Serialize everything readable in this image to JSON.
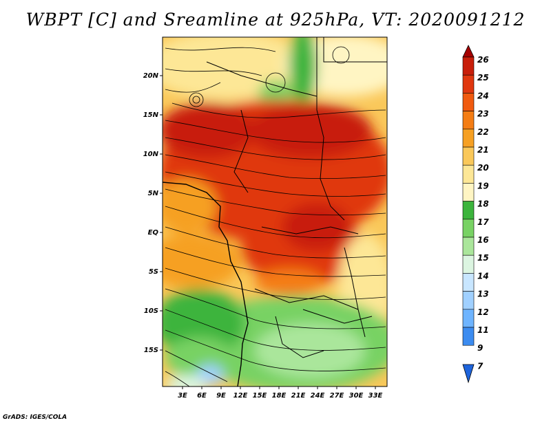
{
  "title": "WBPT [C] and Sreamline at 925hPa, VT: 2020091212",
  "credit": "GrADS: IGES/COLA",
  "lat_labels": [
    "20N",
    "15N",
    "10N",
    "5N",
    "EQ",
    "5S",
    "10S",
    "15S"
  ],
  "lon_labels": [
    "3E",
    "6E",
    "9E",
    "12E",
    "15E",
    "18E",
    "21E",
    "24E",
    "27E",
    "30E",
    "33E"
  ],
  "colorbar": {
    "labels": [
      "26",
      "25",
      "24",
      "23",
      "22",
      "21",
      "20",
      "19",
      "18",
      "17",
      "16",
      "15",
      "14",
      "13",
      "12",
      "11",
      "9",
      "7"
    ],
    "colors": [
      "#a50000",
      "#c81e0a",
      "#e0370f",
      "#f05a0f",
      "#f47d14",
      "#f6a023",
      "#fac85a",
      "#fde796",
      "#fff5c3",
      "#3cb43c",
      "#78d264",
      "#aae69b",
      "#dcf5e1",
      "#c8e6ff",
      "#a0d0ff",
      "#6eb4ff",
      "#3c8cf0",
      "#1e64dc"
    ]
  }
}
